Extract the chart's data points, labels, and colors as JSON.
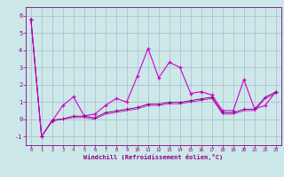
{
  "title": "",
  "xlabel": "Windchill (Refroidissement éolien,°C)",
  "background_color": "#cce8e8",
  "grid_color": "#aabbcc",
  "line_color": "#cc00cc",
  "line_color2": "#880088",
  "x_values": [
    0,
    1,
    2,
    3,
    4,
    5,
    6,
    7,
    8,
    9,
    10,
    11,
    12,
    13,
    14,
    15,
    16,
    17,
    18,
    19,
    20,
    21,
    22,
    23
  ],
  "series1": [
    5.8,
    -1.0,
    -0.1,
    0.8,
    1.3,
    0.2,
    0.3,
    0.8,
    1.2,
    1.0,
    2.5,
    4.1,
    2.4,
    3.3,
    3.0,
    1.5,
    1.6,
    1.4,
    0.5,
    0.5,
    2.3,
    0.6,
    0.8,
    1.6
  ],
  "series2": [
    5.8,
    -1.0,
    -0.05,
    0.02,
    0.18,
    0.18,
    0.08,
    0.38,
    0.48,
    0.58,
    0.68,
    0.88,
    0.88,
    0.98,
    0.98,
    1.08,
    1.18,
    1.28,
    0.38,
    0.38,
    0.58,
    0.58,
    1.28,
    1.58
  ],
  "series3": [
    5.8,
    -1.0,
    -0.1,
    0.0,
    0.1,
    0.1,
    0.0,
    0.3,
    0.4,
    0.5,
    0.6,
    0.8,
    0.8,
    0.9,
    0.9,
    1.0,
    1.1,
    1.2,
    0.3,
    0.3,
    0.5,
    0.5,
    1.2,
    1.5
  ],
  "ylim": [
    -1.5,
    6.5
  ],
  "xlim": [
    -0.5,
    23.5
  ],
  "yticks": [
    -1,
    0,
    1,
    2,
    3,
    4,
    5,
    6
  ],
  "xticks": [
    0,
    1,
    2,
    3,
    4,
    5,
    6,
    7,
    8,
    9,
    10,
    11,
    12,
    13,
    14,
    15,
    16,
    17,
    18,
    19,
    20,
    21,
    22,
    23
  ]
}
